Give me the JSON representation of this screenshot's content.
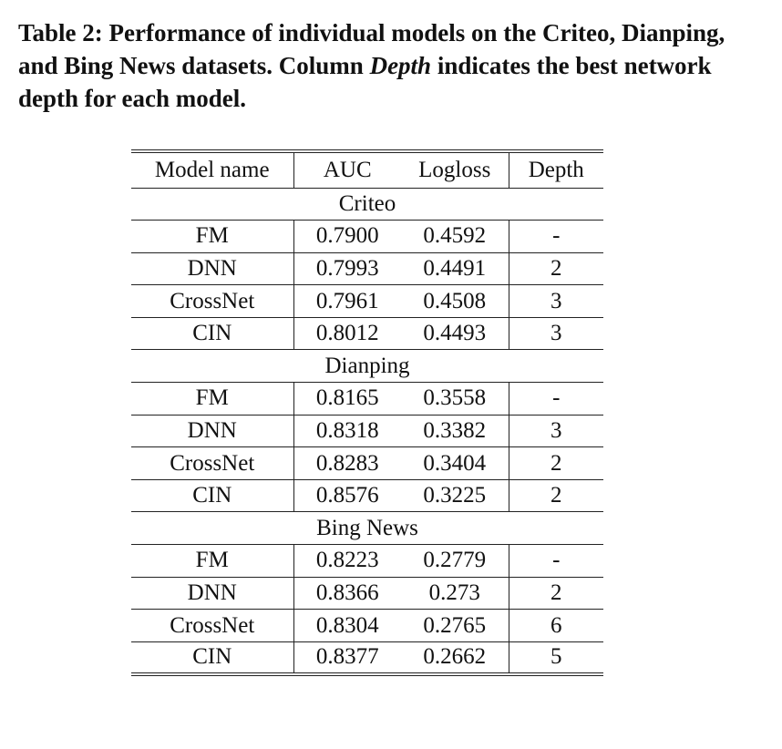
{
  "caption": {
    "label": "Table 2:",
    "text_before": "Performance of individual models on the Criteo, Dianping, and Bing News datasets. Column",
    "emph": "Depth",
    "text_after": "indicates the best network depth for each model."
  },
  "table": {
    "headers": [
      "Model name",
      "AUC",
      "Logloss",
      "Depth"
    ],
    "sections": [
      {
        "name": "Criteo",
        "rows": [
          {
            "model": "FM",
            "auc": "0.7900",
            "logloss": "0.4592",
            "depth": "-",
            "auc_bold": false,
            "logloss_bold": false
          },
          {
            "model": "DNN",
            "auc": "0.7993",
            "logloss": "0.4491",
            "depth": "2",
            "auc_bold": false,
            "logloss_bold": false
          },
          {
            "model": "CrossNet",
            "auc": "0.7961",
            "logloss": "0.4508",
            "depth": "3",
            "auc_bold": false,
            "logloss_bold": false
          },
          {
            "model": "CIN",
            "auc": "0.8012",
            "logloss": "0.4493",
            "depth": "3",
            "auc_bold": true,
            "logloss_bold": false
          }
        ]
      },
      {
        "name": "Dianping",
        "rows": [
          {
            "model": "FM",
            "auc": "0.8165",
            "logloss": "0.3558",
            "depth": "-",
            "auc_bold": false,
            "logloss_bold": false
          },
          {
            "model": "DNN",
            "auc": "0.8318",
            "logloss": "0.3382",
            "depth": "3",
            "auc_bold": false,
            "logloss_bold": false
          },
          {
            "model": "CrossNet",
            "auc": "0.8283",
            "logloss": "0.3404",
            "depth": "2",
            "auc_bold": false,
            "logloss_bold": false
          },
          {
            "model": "CIN",
            "auc": "0.8576",
            "logloss": "0.3225",
            "depth": "2",
            "auc_bold": true,
            "logloss_bold": true
          }
        ]
      },
      {
        "name": "Bing News",
        "rows": [
          {
            "model": "FM",
            "auc": "0.8223",
            "logloss": "0.2779",
            "depth": "-",
            "auc_bold": false,
            "logloss_bold": false
          },
          {
            "model": "DNN",
            "auc": "0.8366",
            "logloss": "0.273",
            "depth": "2",
            "auc_bold": false,
            "logloss_bold": false
          },
          {
            "model": "CrossNet",
            "auc": "0.8304",
            "logloss": "0.2765",
            "depth": "6",
            "auc_bold": false,
            "logloss_bold": false
          },
          {
            "model": "CIN",
            "auc": "0.8377",
            "logloss": "0.2662",
            "depth": "5",
            "auc_bold": true,
            "logloss_bold": true
          }
        ]
      }
    ]
  }
}
